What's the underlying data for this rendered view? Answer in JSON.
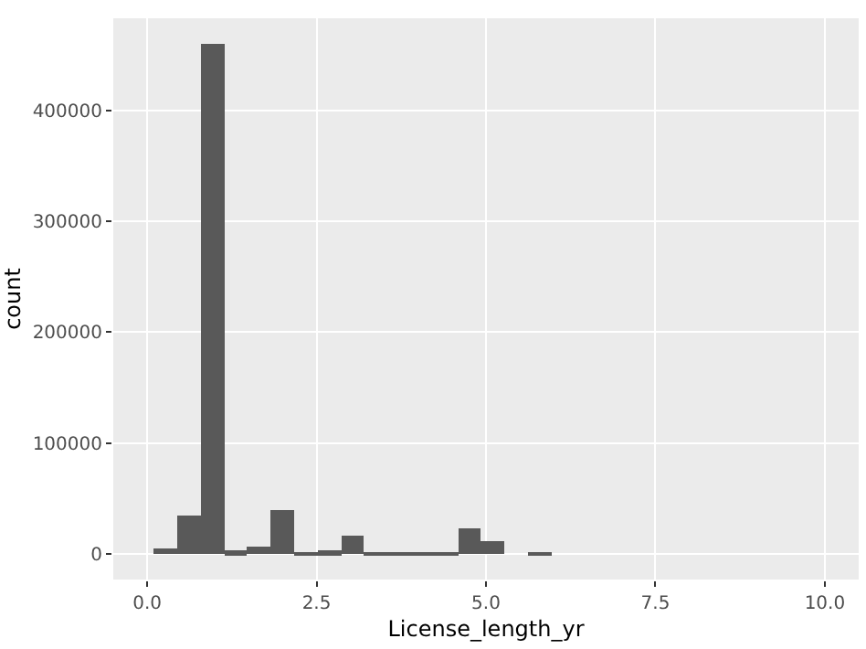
{
  "chart_data": {
    "type": "histogram",
    "xlabel": "License_length_yr",
    "ylabel": "count",
    "color": "#595959",
    "bins": [
      0.1,
      0.445,
      0.79,
      1.135,
      1.48,
      1.825,
      2.17,
      2.515,
      2.86,
      3.205,
      3.55,
      3.895,
      4.24,
      4.585,
      4.93,
      5.275,
      5.62,
      5.965,
      6.31,
      6.655,
      7,
      7.345,
      7.69,
      8.035,
      8.38,
      8.725,
      9.07,
      9.415,
      9.76,
      10.105
    ],
    "values": [
      5000,
      34000,
      460000,
      3000,
      6500,
      39000,
      1000,
      3000,
      16000,
      500,
      500,
      2000,
      1000,
      22500,
      12000,
      0,
      500,
      0,
      0,
      0,
      0,
      0,
      0,
      0,
      0,
      0,
      0,
      0,
      0
    ],
    "xlim": [
      -0.5,
      10.5
    ],
    "xticks": [
      {
        "value": 0,
        "label": "0.0"
      },
      {
        "value": 2.5,
        "label": "2.5"
      },
      {
        "value": 5,
        "label": "5.0"
      },
      {
        "value": 7.5,
        "label": "7.5"
      },
      {
        "value": 10,
        "label": "10.0"
      }
    ],
    "ylim": [
      -23000,
      483000
    ],
    "yticks": [
      0,
      100000,
      200000,
      300000,
      400000
    ],
    "grid": true
  }
}
